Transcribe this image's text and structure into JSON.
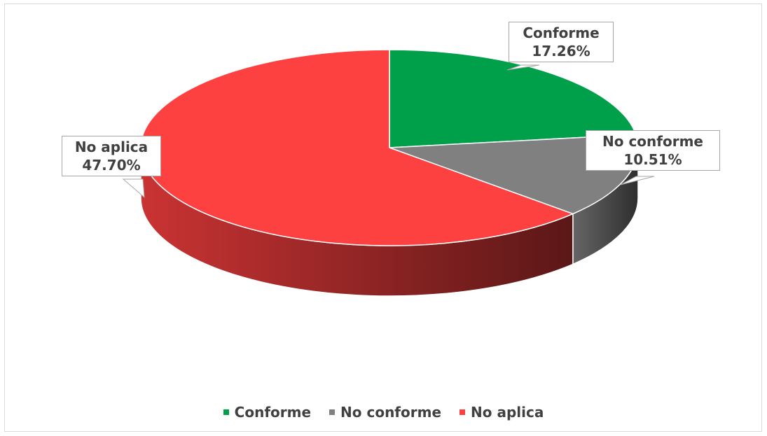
{
  "chart_data": {
    "type": "pie",
    "title": "",
    "slices": [
      {
        "label": "Conforme",
        "percent": 17.26,
        "value_label": "17.26%",
        "color": "#00a04a"
      },
      {
        "label": "No conforme",
        "percent": 10.51,
        "value_label": "10.51%",
        "color": "#808080"
      },
      {
        "label": "No aplica",
        "percent": 47.7,
        "value_label": "47.70%",
        "color": "#fd4040"
      }
    ],
    "three_d": true,
    "legend_position": "bottom"
  }
}
